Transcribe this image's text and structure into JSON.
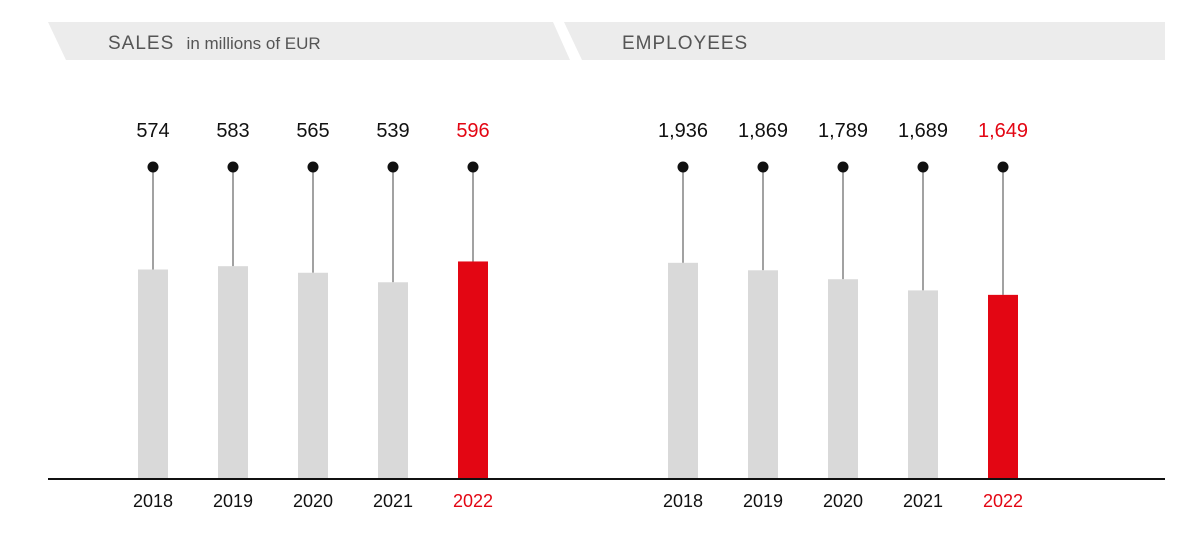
{
  "colors": {
    "bar": "#d9d9d9",
    "highlight": "#e30613",
    "text": "#111111",
    "header_bg": "#ececec",
    "header_text": "#555555",
    "axis": "#111111"
  },
  "chart_data": [
    {
      "type": "bar",
      "title": "SALES",
      "subtitle": "in millions of EUR",
      "categories": [
        "2018",
        "2019",
        "2020",
        "2021",
        "2022"
      ],
      "values": [
        574,
        583,
        565,
        539,
        596
      ],
      "value_labels": [
        "574",
        "583",
        "565",
        "539",
        "596"
      ],
      "highlight_index": 4,
      "ylim": [
        0,
        1000
      ],
      "xlabel": "",
      "ylabel": "",
      "grid": false
    },
    {
      "type": "bar",
      "title": "EMPLOYEES",
      "subtitle": "",
      "categories": [
        "2018",
        "2019",
        "2020",
        "2021",
        "2022"
      ],
      "values": [
        1936,
        1869,
        1789,
        1689,
        1649
      ],
      "value_labels": [
        "1,936",
        "1,869",
        "1,789",
        "1,689",
        "1,649"
      ],
      "highlight_index": 4,
      "ylim": [
        0,
        3000
      ],
      "xlabel": "",
      "ylabel": "",
      "grid": false
    }
  ]
}
